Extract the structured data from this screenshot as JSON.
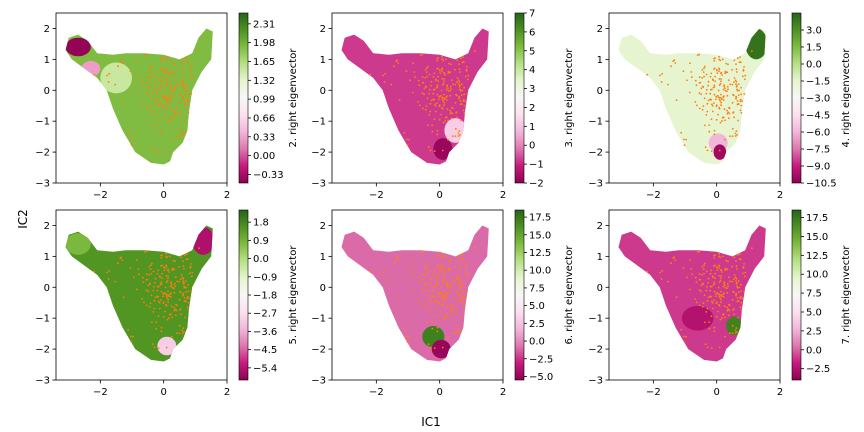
{
  "figure": {
    "xlabel": "IC1",
    "ylabel": "IC2"
  },
  "chart_data": [
    {
      "type": "scatter",
      "title": "",
      "xlim": [
        -3.4,
        2.0
      ],
      "ylim": [
        -3.0,
        2.5
      ],
      "xticks": [
        "−2",
        "0",
        "2"
      ],
      "yticks": [
        "−3",
        "−2",
        "−1",
        "0",
        "1",
        "2"
      ],
      "colorbar": {
        "label": "2. right eigenvector",
        "range": [
          -0.48,
          2.5
        ],
        "ticks": [
          "−0.33",
          "0.00",
          "0.33",
          "0.66",
          "0.99",
          "1.32",
          "1.65",
          "1.98",
          "2.31"
        ],
        "tick_values": [
          -0.33,
          0.0,
          0.33,
          0.66,
          0.99,
          1.32,
          1.65,
          1.98,
          2.31
        ]
      },
      "regions": [
        {
          "cx": -2.7,
          "cy": 1.4,
          "rx": 0.4,
          "ry": 0.3,
          "value": -0.45
        },
        {
          "cx": -2.3,
          "cy": 0.7,
          "rx": 0.3,
          "ry": 0.25,
          "value": 0.3
        },
        {
          "cx": -1.5,
          "cy": 0.4,
          "rx": 0.5,
          "ry": 0.5,
          "value": 1.5
        }
      ]
    },
    {
      "type": "scatter",
      "title": "",
      "xlim": [
        -3.4,
        2.0
      ],
      "ylim": [
        -3.0,
        2.5
      ],
      "xticks": [
        "−2",
        "0",
        "2"
      ],
      "yticks": [
        "−3",
        "−2",
        "−1",
        "0",
        "1",
        "2"
      ],
      "colorbar": {
        "label": "3. right eigenvector",
        "range": [
          -2.0,
          7.0
        ],
        "ticks": [
          "−2",
          "−1",
          "0",
          "1",
          "2",
          "3",
          "4",
          "5",
          "6",
          "7"
        ],
        "tick_values": [
          -2,
          -1,
          0,
          1,
          2,
          3,
          4,
          5,
          6,
          7
        ]
      },
      "regions": [
        {
          "cx": 0.5,
          "cy": -1.3,
          "rx": 0.35,
          "ry": 0.4,
          "value": 1.2
        },
        {
          "cx": 0.1,
          "cy": -1.9,
          "rx": 0.3,
          "ry": 0.35,
          "value": -1.8
        }
      ]
    },
    {
      "type": "scatter",
      "title": "",
      "xlim": [
        -3.4,
        2.0
      ],
      "ylim": [
        -3.0,
        2.5
      ],
      "xticks": [
        "−2",
        "0",
        "2"
      ],
      "yticks": [
        "−3",
        "−2",
        "−1",
        "0",
        "1",
        "2"
      ],
      "colorbar": {
        "label": "4. right eigenvector",
        "range": [
          -10.5,
          4.5
        ],
        "ticks": [
          "−10.5",
          "−9.0",
          "−7.5",
          "−6.0",
          "−4.5",
          "−3.0",
          "−1.5",
          "0.0",
          "1.5",
          "3.0"
        ],
        "tick_values": [
          -10.5,
          -9.0,
          -7.5,
          -6.0,
          -4.5,
          -3.0,
          -1.5,
          0.0,
          1.5,
          3.0
        ]
      },
      "regions": [
        {
          "cx": 1.25,
          "cy": 1.5,
          "rx": 0.35,
          "ry": 0.5,
          "value": 4.0
        },
        {
          "cx": 0.05,
          "cy": -1.7,
          "rx": 0.3,
          "ry": 0.3,
          "value": -6.0
        },
        {
          "cx": 0.1,
          "cy": -2.0,
          "rx": 0.2,
          "ry": 0.25,
          "value": -10.0
        }
      ]
    },
    {
      "type": "scatter",
      "title": "",
      "xlim": [
        -3.4,
        2.0
      ],
      "ylim": [
        -3.0,
        2.5
      ],
      "xticks": [
        "−2",
        "0",
        "2"
      ],
      "yticks": [
        "−3",
        "−2",
        "−1",
        "0",
        "1",
        "2"
      ],
      "colorbar": {
        "label": "5. right eigenvector",
        "range": [
          -6.0,
          2.4
        ],
        "ticks": [
          "−5.4",
          "−4.5",
          "−3.6",
          "−2.7",
          "−1.8",
          "−0.9",
          "0.0",
          "0.9",
          "1.8"
        ],
        "tick_values": [
          -5.4,
          -4.5,
          -3.6,
          -2.7,
          -1.8,
          -0.9,
          0.0,
          0.9,
          1.8
        ]
      },
      "regions": [
        {
          "cx": 1.25,
          "cy": 1.5,
          "rx": 0.35,
          "ry": 0.45,
          "value": -5.5
        },
        {
          "cx": -2.7,
          "cy": 1.4,
          "rx": 0.4,
          "ry": 0.35,
          "value": 0.8
        },
        {
          "cx": 0.1,
          "cy": -1.9,
          "rx": 0.3,
          "ry": 0.3,
          "value": -3.0
        }
      ]
    },
    {
      "type": "scatter",
      "title": "",
      "xlim": [
        -3.4,
        2.0
      ],
      "ylim": [
        -3.0,
        2.5
      ],
      "xticks": [
        "−2",
        "0",
        "2"
      ],
      "yticks": [
        "−3",
        "−2",
        "−1",
        "0",
        "1",
        "2"
      ],
      "colorbar": {
        "label": "6. right eigenvector",
        "range": [
          -5.5,
          18.5
        ],
        "ticks": [
          "−5.0",
          "−2.5",
          "0.0",
          "2.5",
          "5.0",
          "7.5",
          "10.0",
          "12.5",
          "15.0",
          "17.5"
        ],
        "tick_values": [
          -5.0,
          -2.5,
          0.0,
          2.5,
          5.0,
          7.5,
          10.0,
          12.5,
          15.0,
          17.5
        ]
      },
      "regions": [
        {
          "cx": -0.2,
          "cy": -1.6,
          "rx": 0.35,
          "ry": 0.35,
          "value": 17.0
        },
        {
          "cx": 0.05,
          "cy": -2.0,
          "rx": 0.3,
          "ry": 0.3,
          "value": -5.0
        }
      ]
    },
    {
      "type": "scatter",
      "title": "",
      "xlim": [
        -3.4,
        2.0
      ],
      "ylim": [
        -3.0,
        2.5
      ],
      "xticks": [
        "−2",
        "0",
        "2"
      ],
      "yticks": [
        "−3",
        "−2",
        "−1",
        "0",
        "1",
        "2"
      ],
      "colorbar": {
        "label": "7. right eigenvector",
        "range": [
          -4.0,
          18.5
        ],
        "ticks": [
          "−2.5",
          "0.0",
          "2.5",
          "5.0",
          "7.5",
          "10.0",
          "12.5",
          "15.0",
          "17.5"
        ],
        "tick_values": [
          -2.5,
          0.0,
          2.5,
          5.0,
          7.5,
          10.0,
          12.5,
          15.0,
          17.5
        ]
      },
      "regions": [
        {
          "cx": 0.55,
          "cy": -1.25,
          "rx": 0.25,
          "ry": 0.3,
          "value": 17.0
        },
        {
          "cx": -0.6,
          "cy": -1.0,
          "rx": 0.5,
          "ry": 0.4,
          "value": -2.5
        }
      ]
    }
  ]
}
